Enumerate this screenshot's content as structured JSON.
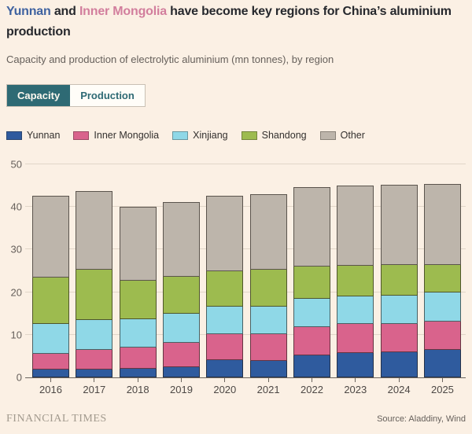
{
  "header": {
    "title_highlight1": "Yunnan",
    "title_mid": " and ",
    "title_highlight2": "Inner Mongolia",
    "title_rest": " have become key regions for China’s aluminium production",
    "subtitle": "Capacity and production of electrolytic aluminium (mn tonnes), by region"
  },
  "colors": {
    "title_yunnan": "#3F62A0",
    "title_inner_mongolia": "#D27E9D",
    "tab_active_bg": "#2E6A74",
    "tab_inactive_text": "#2E6A74",
    "background": "#FBF0E4"
  },
  "tabs": [
    {
      "label": "Capacity",
      "active": true
    },
    {
      "label": "Production",
      "active": false
    }
  ],
  "chart_data": {
    "type": "bar",
    "stacked": true,
    "title": "Capacity and production of electrolytic aluminium (mn tonnes), by region",
    "categories": [
      "2016",
      "2017",
      "2018",
      "2019",
      "2020",
      "2021",
      "2022",
      "2023",
      "2024",
      "2025"
    ],
    "series": [
      {
        "name": "Yunnan",
        "color": "#2F5B9E",
        "values": [
          1.8,
          1.7,
          1.9,
          2.2,
          3.9,
          3.8,
          5.1,
          5.7,
          5.8,
          6.4
        ]
      },
      {
        "name": "Inner Mongolia",
        "color": "#D9638C",
        "values": [
          3.6,
          4.6,
          5.0,
          5.8,
          6.1,
          6.2,
          6.7,
          6.7,
          6.7,
          6.7
        ]
      },
      {
        "name": "Xinjiang",
        "color": "#8FD8E7",
        "values": [
          7.0,
          7.0,
          6.5,
          6.7,
          6.5,
          6.4,
          6.6,
          6.5,
          6.6,
          6.8
        ]
      },
      {
        "name": "Shandong",
        "color": "#9DBB4F",
        "values": [
          10.9,
          11.9,
          9.2,
          8.9,
          8.4,
          8.7,
          7.6,
          7.3,
          7.2,
          6.4
        ]
      },
      {
        "name": "Other",
        "color": "#BDB5AB",
        "values": [
          19.3,
          18.5,
          17.4,
          17.6,
          17.7,
          17.9,
          18.6,
          18.8,
          18.9,
          19.1
        ]
      }
    ],
    "totals": [
      42.6,
      43.7,
      40.0,
      41.2,
      42.6,
      43.0,
      44.6,
      45.0,
      45.2,
      45.4
    ],
    "xlabel": "",
    "ylabel": "",
    "ylim": [
      0,
      50
    ],
    "yticks": [
      0,
      10,
      20,
      30,
      40,
      50
    ],
    "grid": true,
    "legend_position": "top-left"
  },
  "footer": {
    "brand": "FINANCIAL TIMES",
    "source": "Source: Aladdiny, Wind"
  }
}
